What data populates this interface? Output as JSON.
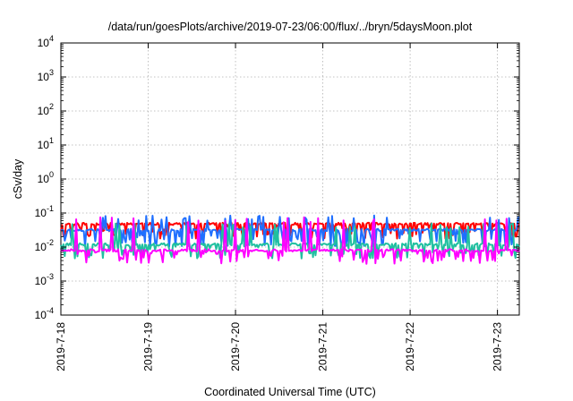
{
  "chart_data": {
    "type": "line",
    "title": "/data/run/goesPlots/archive/2019-07-23/06:00/flux/../bryn/5daysMoon.plot",
    "xlabel": "Coordinated Universal Time (UTC)",
    "ylabel": "cSv/day",
    "yscale": "log",
    "ylim": [
      0.0001,
      10000
    ],
    "ytick_labels": [
      {
        "base": "10",
        "exp": "-4"
      },
      {
        "base": "10",
        "exp": "-3"
      },
      {
        "base": "10",
        "exp": "-2"
      },
      {
        "base": "10",
        "exp": "-1"
      },
      {
        "base": "10",
        "exp": "0"
      },
      {
        "base": "10",
        "exp": "1"
      },
      {
        "base": "10",
        "exp": "2"
      },
      {
        "base": "10",
        "exp": "3"
      },
      {
        "base": "10",
        "exp": "4"
      }
    ],
    "xlim": [
      "2019-07-18",
      "2019-07-23 06:00"
    ],
    "xtick_labels": [
      "2019-7-18",
      "2019-7-19",
      "2019-7-20",
      "2019-7-21",
      "2019-7-22",
      "2019-7-23"
    ],
    "grid": true,
    "series": [
      {
        "color": "#ff0000",
        "base": 0.048,
        "dip_depth": 1.7,
        "dip_prob": 0.35,
        "seed": 11
      },
      {
        "color": "#1f6fff",
        "base": 0.032,
        "dip_depth": 2.2,
        "dip_prob": 0.35,
        "seed": 23,
        "spike": 0.085
      },
      {
        "color": "#20c0a0",
        "base": 0.012,
        "dip_depth": 1.6,
        "dip_prob": 0.3,
        "seed": 37,
        "spike": 0.05
      },
      {
        "color": "#ff00ff",
        "base": 0.008,
        "dip_depth": 1.5,
        "dip_prob": 0.25,
        "seed": 51,
        "spike": 0.075
      }
    ]
  }
}
